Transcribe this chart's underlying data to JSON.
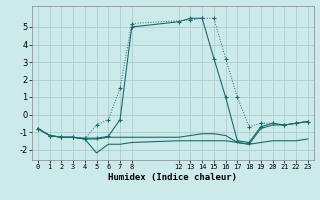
{
  "xlabel": "Humidex (Indice chaleur)",
  "bg_color": "#cceaea",
  "grid_color": "#aacece",
  "line_color": "#1a6b6b",
  "xlim": [
    -0.5,
    23.5
  ],
  "ylim": [
    -2.6,
    6.2
  ],
  "xticks": [
    0,
    1,
    2,
    3,
    4,
    5,
    6,
    7,
    8,
    12,
    13,
    14,
    15,
    16,
    17,
    18,
    19,
    20,
    21,
    22,
    23
  ],
  "yticks": [
    -2,
    -1,
    0,
    1,
    2,
    3,
    4,
    5
  ],
  "series1_x": [
    0,
    1,
    2,
    3,
    4,
    5,
    6,
    7,
    8,
    13,
    14,
    15,
    16,
    17,
    18,
    19,
    20,
    21,
    22,
    23
  ],
  "series1_y": [
    -0.8,
    -1.2,
    -1.3,
    -1.3,
    -1.4,
    -0.6,
    -0.3,
    1.5,
    5.2,
    5.4,
    5.5,
    5.5,
    3.2,
    1.0,
    -0.7,
    -0.5,
    -0.5,
    -0.6,
    -0.5,
    -0.4
  ],
  "series2_x": [
    0,
    1,
    2,
    3,
    4,
    5,
    6,
    7,
    8,
    12,
    13,
    14,
    15,
    16,
    17,
    18,
    19,
    20,
    21,
    22,
    23
  ],
  "series2_y": [
    -0.8,
    -1.2,
    -1.3,
    -1.3,
    -1.4,
    -2.2,
    -1.7,
    -1.7,
    -1.6,
    -1.5,
    -1.5,
    -1.5,
    -1.5,
    -1.5,
    -1.6,
    -1.7,
    -1.6,
    -1.5,
    -1.5,
    -1.5,
    -1.4
  ],
  "series3_x": [
    0,
    1,
    2,
    3,
    4,
    5,
    6,
    7,
    8,
    12,
    13,
    14,
    15,
    16,
    17,
    18,
    19,
    20,
    21,
    22,
    23
  ],
  "series3_y": [
    -0.8,
    -1.2,
    -1.3,
    -1.3,
    -1.4,
    -1.4,
    -1.3,
    -1.3,
    -1.3,
    -1.3,
    -1.2,
    -1.1,
    -1.1,
    -1.2,
    -1.6,
    -1.7,
    -0.8,
    -0.6,
    -0.6,
    -0.5,
    -0.4
  ],
  "series4_x": [
    0,
    1,
    2,
    3,
    4,
    5,
    6,
    7,
    8,
    12,
    13,
    14,
    15,
    16,
    17,
    18,
    19,
    20,
    21,
    22,
    23
  ],
  "series4_y": [
    -0.8,
    -1.2,
    -1.3,
    -1.3,
    -1.35,
    -1.35,
    -1.25,
    -0.3,
    5.0,
    5.3,
    5.5,
    5.5,
    3.2,
    1.0,
    -1.5,
    -1.6,
    -0.7,
    -0.5,
    -0.6,
    -0.5,
    -0.4
  ]
}
